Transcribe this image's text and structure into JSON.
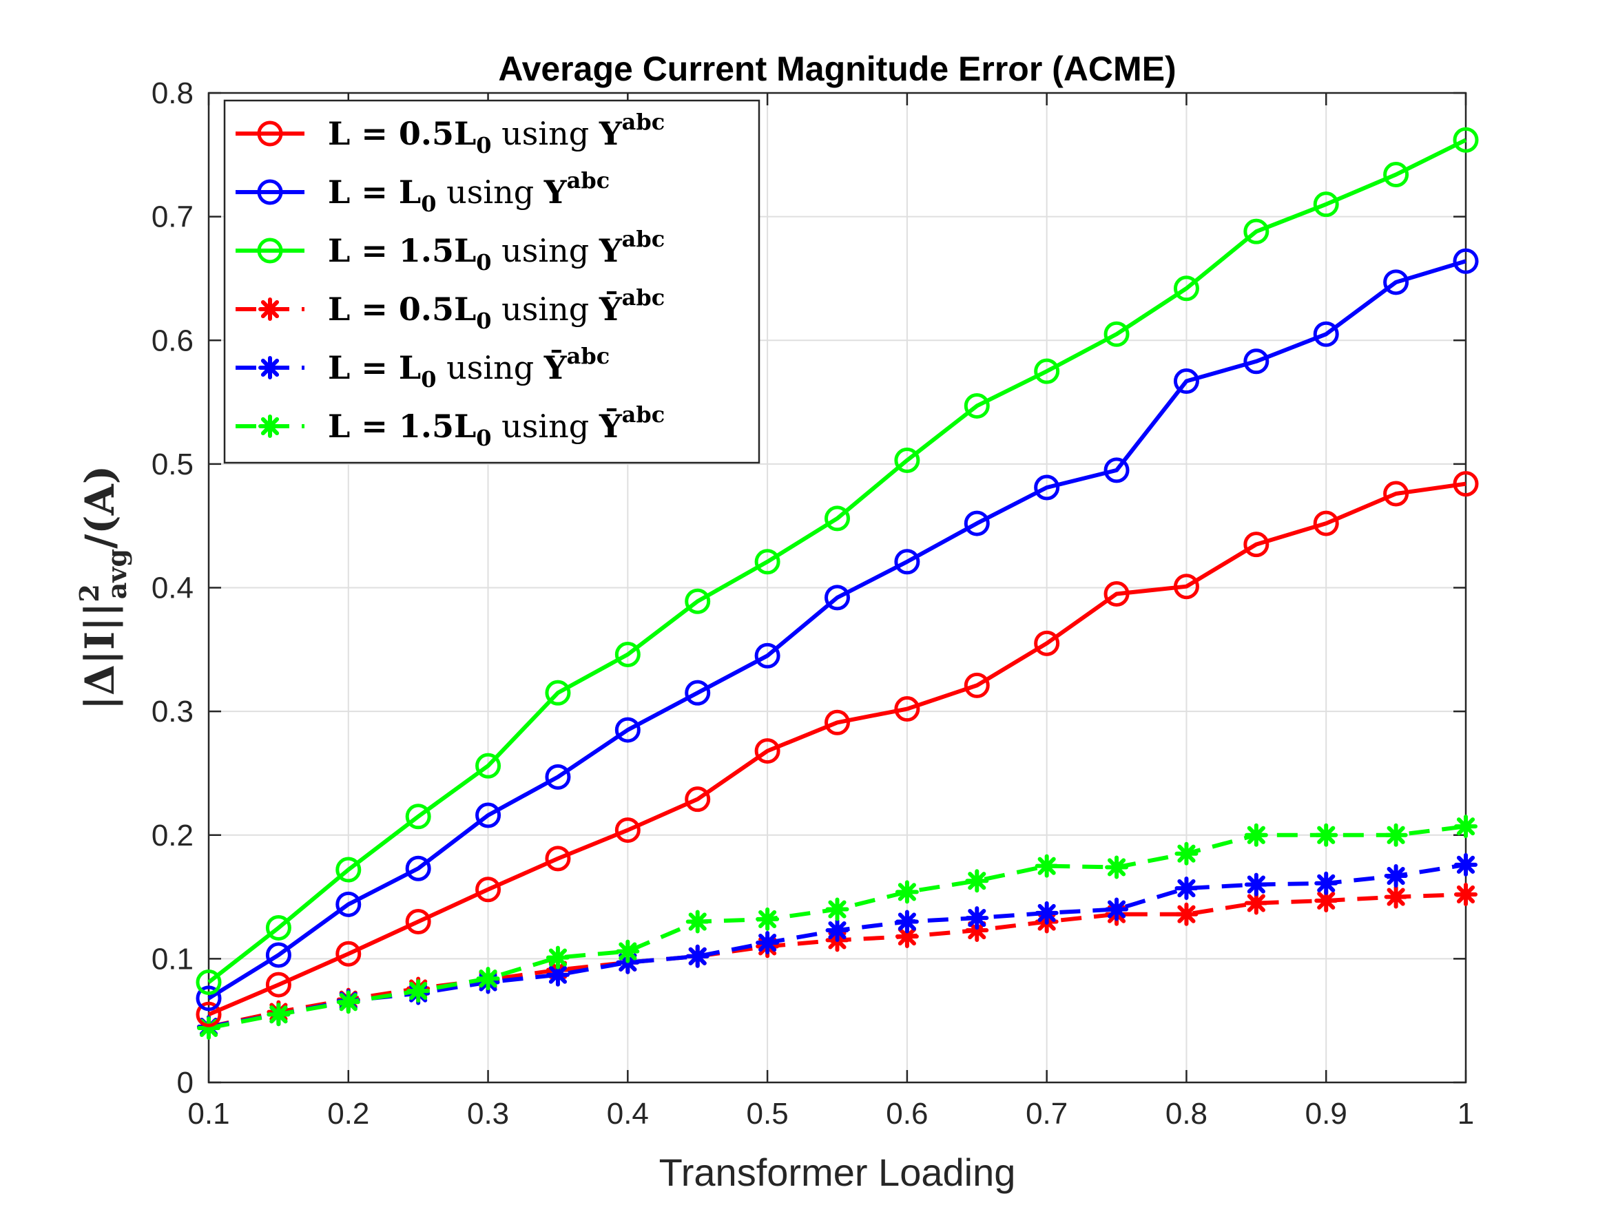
{
  "chart_data": {
    "type": "line",
    "title": "Average Current Magnitude Error (ACME)",
    "xlabel": "Transformer Loading",
    "ylabel": "|Δ|I||²avg/(A)",
    "ylabel_parts": {
      "pre": "|Δ|I||",
      "sup": "2",
      "sub": "avg",
      "post": "/(A)"
    },
    "xlim": [
      0.1,
      1
    ],
    "ylim": [
      0,
      0.8
    ],
    "xticks": [
      0.1,
      0.2,
      0.3,
      0.4,
      0.5,
      0.6,
      0.7,
      0.8,
      0.9,
      1
    ],
    "xtick_labels": [
      "0.1",
      "0.2",
      "0.3",
      "0.4",
      "0.5",
      "0.6",
      "0.7",
      "0.8",
      "0.9",
      "1"
    ],
    "yticks": [
      0,
      0.1,
      0.2,
      0.3,
      0.4,
      0.5,
      0.6,
      0.7,
      0.8
    ],
    "ytick_labels": [
      "0",
      "0.1",
      "0.2",
      "0.3",
      "0.4",
      "0.5",
      "0.6",
      "0.7",
      "0.8"
    ],
    "grid": true,
    "legend_position": "top-left",
    "x": [
      0.1,
      0.15,
      0.2,
      0.25,
      0.3,
      0.35,
      0.4,
      0.45,
      0.5,
      0.55,
      0.6,
      0.65,
      0.7,
      0.75,
      0.8,
      0.85,
      0.9,
      0.95,
      1
    ],
    "series": [
      {
        "name": "L = 0.5L0 using Yabc",
        "label": {
          "coef": "0.5",
          "bar": false
        },
        "color": "#ff0000",
        "style": "solid",
        "marker": "circle",
        "values": [
          0.055,
          0.079,
          0.104,
          0.13,
          0.156,
          0.181,
          0.204,
          0.229,
          0.268,
          0.291,
          0.302,
          0.321,
          0.355,
          0.395,
          0.401,
          0.435,
          0.452,
          0.476,
          0.484
        ]
      },
      {
        "name": "L = L0 using Yabc",
        "label": {
          "coef": "",
          "bar": false
        },
        "color": "#0000ff",
        "style": "solid",
        "marker": "circle",
        "values": [
          0.068,
          0.103,
          0.144,
          0.173,
          0.216,
          0.247,
          0.285,
          0.315,
          0.345,
          0.392,
          0.421,
          0.452,
          0.481,
          0.495,
          0.567,
          0.583,
          0.605,
          0.647,
          0.664
        ]
      },
      {
        "name": "L = 1.5L0 using Yabc",
        "label": {
          "coef": "1.5",
          "bar": false
        },
        "color": "#00ff00",
        "style": "solid",
        "marker": "circle",
        "values": [
          0.081,
          0.125,
          0.172,
          0.215,
          0.256,
          0.315,
          0.346,
          0.389,
          0.421,
          0.456,
          0.503,
          0.547,
          0.575,
          0.605,
          0.642,
          0.688,
          0.71,
          0.734,
          0.762
        ]
      },
      {
        "name": "L = 0.5L0 using Ȳabc",
        "label": {
          "coef": "0.5",
          "bar": true
        },
        "color": "#ff0000",
        "style": "dashed",
        "marker": "asterisk",
        "values": [
          0.045,
          0.057,
          0.067,
          0.076,
          0.083,
          0.091,
          0.097,
          0.102,
          0.11,
          0.115,
          0.118,
          0.123,
          0.13,
          0.136,
          0.136,
          0.145,
          0.147,
          0.15,
          0.152
        ]
      },
      {
        "name": "L = L0 using Ȳabc",
        "label": {
          "coef": "",
          "bar": true
        },
        "color": "#0000ff",
        "style": "dashed",
        "marker": "asterisk",
        "values": [
          0.045,
          0.055,
          0.066,
          0.072,
          0.081,
          0.087,
          0.097,
          0.102,
          0.113,
          0.123,
          0.13,
          0.133,
          0.137,
          0.14,
          0.157,
          0.16,
          0.161,
          0.167,
          0.176
        ]
      },
      {
        "name": "L = 1.5L0 using Ȳabc",
        "label": {
          "coef": "1.5",
          "bar": true
        },
        "color": "#00ff00",
        "style": "dashed",
        "marker": "asterisk",
        "values": [
          0.044,
          0.055,
          0.065,
          0.074,
          0.084,
          0.101,
          0.106,
          0.13,
          0.132,
          0.14,
          0.154,
          0.163,
          0.175,
          0.174,
          0.185,
          0.2,
          0.2,
          0.2,
          0.207
        ]
      }
    ]
  }
}
